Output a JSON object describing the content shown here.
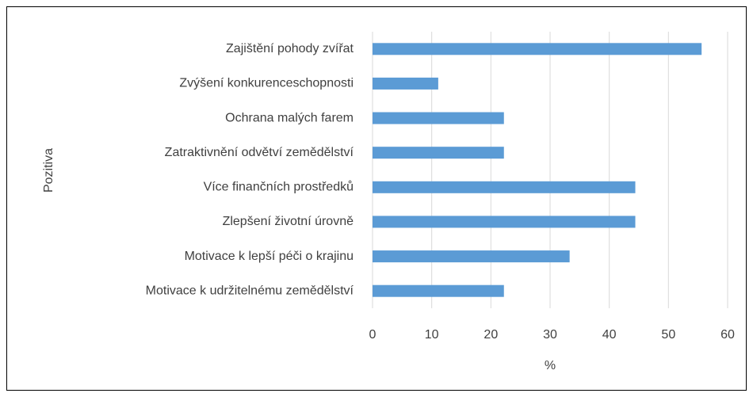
{
  "chart_data": {
    "type": "bar",
    "orientation": "horizontal",
    "categories": [
      "Zajištění pohody zvířat",
      "Zvýšení konkurenceschopnosti",
      "Ochrana malých farem",
      "Zatraktivnění odvětví zemědělství",
      "Více finančních prostředků",
      "Zlepšení životní úrovně",
      "Motivace k lepší péči o krajinu",
      "Motivace k udržitelnému zemědělství"
    ],
    "values": [
      55.6,
      11.1,
      22.2,
      22.2,
      44.4,
      44.4,
      33.3,
      22.2
    ],
    "color": "#5b9bd5",
    "xlabel": "%",
    "ylabel": "Pozitiva",
    "xlim": [
      0,
      60
    ],
    "xticks": [
      0,
      10,
      20,
      30,
      40,
      50,
      60
    ],
    "grid": true
  }
}
